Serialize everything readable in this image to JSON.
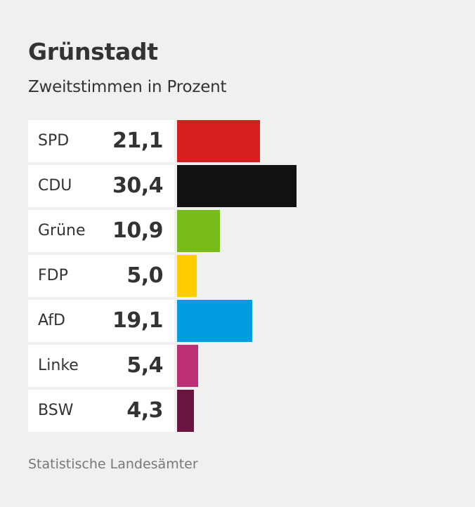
{
  "header": {
    "title": "Grünstadt",
    "subtitle": "Zweitstimmen in Prozent"
  },
  "footer": {
    "source": "Statistische Landesämter"
  },
  "chart_data": {
    "type": "bar",
    "orientation": "horizontal",
    "title": "Grünstadt",
    "subtitle": "Zweitstimmen in Prozent",
    "xlabel": "",
    "ylabel": "",
    "unit": "%",
    "categories": [
      "SPD",
      "CDU",
      "Grüne",
      "FDP",
      "AfD",
      "Linke",
      "BSW"
    ],
    "values": [
      21.1,
      30.4,
      10.9,
      5.0,
      19.1,
      5.4,
      4.3
    ],
    "labels": [
      "21,1",
      "30,4",
      "10,9",
      "5,0",
      "19,1",
      "5,4",
      "4,3"
    ],
    "colors": [
      "#d71f1f",
      "#111111",
      "#78bc1b",
      "#ffcc00",
      "#009ee0",
      "#be3075",
      "#6a1540"
    ],
    "grid": false,
    "legend": "none",
    "source": "Statistische Landesämter"
  }
}
